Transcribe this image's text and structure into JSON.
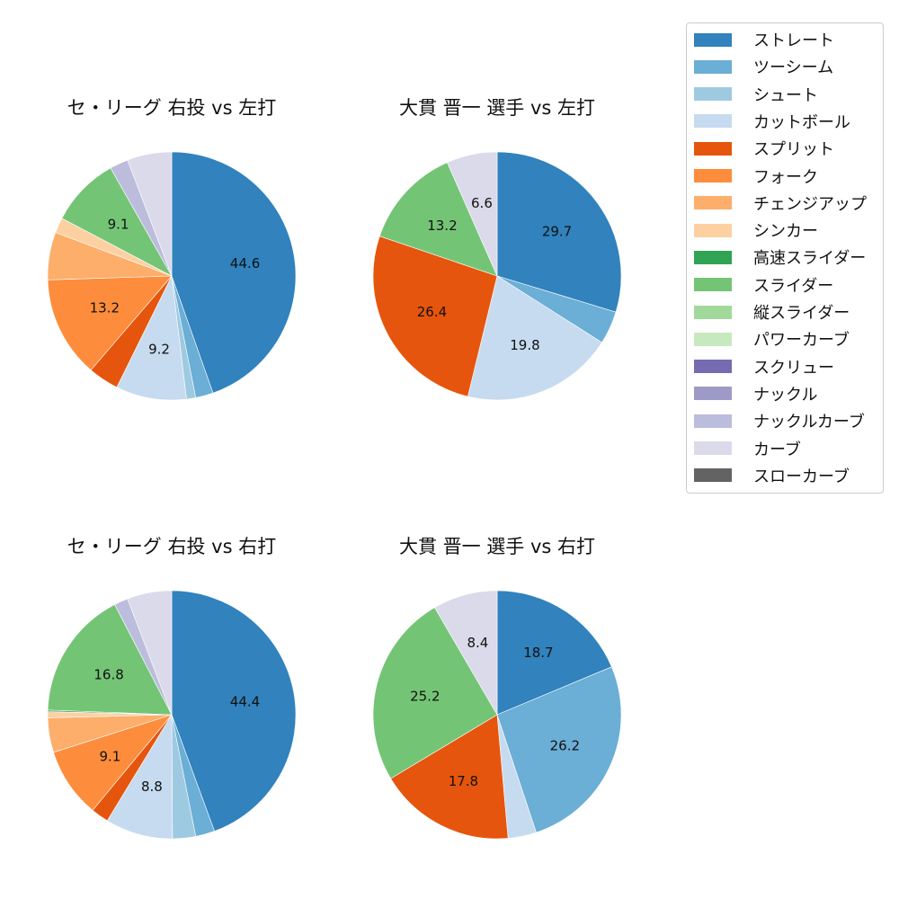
{
  "legend": {
    "items": [
      {
        "label": "ストレート",
        "color": "#3182bd"
      },
      {
        "label": "ツーシーム",
        "color": "#6baed6"
      },
      {
        "label": "シュート",
        "color": "#9ecae1"
      },
      {
        "label": "カットボール",
        "color": "#c6dbef"
      },
      {
        "label": "スプリット",
        "color": "#e6550d"
      },
      {
        "label": "フォーク",
        "color": "#fd8d3c"
      },
      {
        "label": "チェンジアップ",
        "color": "#fdae6b"
      },
      {
        "label": "シンカー",
        "color": "#fdd0a2"
      },
      {
        "label": "高速スライダー",
        "color": "#31a354"
      },
      {
        "label": "スライダー",
        "color": "#74c476"
      },
      {
        "label": "縦スライダー",
        "color": "#a1d99b"
      },
      {
        "label": "パワーカーブ",
        "color": "#c7e9c0"
      },
      {
        "label": "スクリュー",
        "color": "#756bb1"
      },
      {
        "label": "ナックル",
        "color": "#9e9ac8"
      },
      {
        "label": "ナックルカーブ",
        "color": "#bcbddc"
      },
      {
        "label": "カーブ",
        "color": "#dadaeb"
      },
      {
        "label": "スローカーブ",
        "color": "#636363"
      }
    ]
  },
  "chart_data": [
    {
      "type": "pie",
      "title": "セ・リーグ 右投 vs 左打",
      "categories": [
        "ストレート",
        "ツーシーム",
        "シュート",
        "カットボール",
        "スプリット",
        "フォーク",
        "チェンジアップ",
        "シンカー",
        "スライダー",
        "ナックルカーブ",
        "カーブ"
      ],
      "values": [
        44.6,
        2.3,
        1.2,
        9.2,
        4.0,
        13.2,
        6.2,
        2.0,
        9.1,
        2.4,
        5.8
      ],
      "labels_shown": [
        "44.6",
        "",
        "",
        "9.2",
        "",
        "13.2",
        "",
        "",
        "9.1",
        "",
        ""
      ],
      "start_angle": 90,
      "direction": "clockwise"
    },
    {
      "type": "pie",
      "title": "大貫 晋一 選手 vs 左打",
      "categories": [
        "ストレート",
        "ツーシーム",
        "カットボール",
        "スプリット",
        "スライダー",
        "カーブ"
      ],
      "values": [
        29.7,
        4.3,
        19.8,
        26.4,
        13.2,
        6.6
      ],
      "labels_shown": [
        "29.7",
        "",
        "19.8",
        "26.4",
        "13.2",
        "6.6"
      ],
      "start_angle": 90,
      "direction": "clockwise"
    },
    {
      "type": "pie",
      "title": "セ・リーグ 右投 vs 右打",
      "categories": [
        "ストレート",
        "ツーシーム",
        "シュート",
        "カットボール",
        "スプリット",
        "フォーク",
        "チェンジアップ",
        "シンカー",
        "高速スライダー",
        "スライダー",
        "ナックルカーブ",
        "カーブ"
      ],
      "values": [
        44.4,
        2.5,
        3.0,
        8.8,
        2.3,
        9.1,
        4.5,
        0.8,
        0.2,
        16.8,
        1.8,
        5.8
      ],
      "labels_shown": [
        "44.4",
        "",
        "",
        "8.8",
        "",
        "9.1",
        "",
        "",
        "",
        "16.8",
        "",
        ""
      ],
      "start_angle": 90,
      "direction": "clockwise"
    },
    {
      "type": "pie",
      "title": "大貫 晋一 選手 vs 右打",
      "categories": [
        "ストレート",
        "ツーシーム",
        "カットボール",
        "スプリット",
        "スライダー",
        "カーブ"
      ],
      "values": [
        18.7,
        26.2,
        3.7,
        17.8,
        25.2,
        8.4
      ],
      "labels_shown": [
        "18.7",
        "26.2",
        "",
        "17.8",
        "25.2",
        "8.4"
      ],
      "start_angle": 90,
      "direction": "clockwise"
    }
  ],
  "panels": [
    {
      "title": "セ・リーグ 右投 vs 左打"
    },
    {
      "title": "大貫 晋一 選手 vs 左打"
    },
    {
      "title": "セ・リーグ 右投 vs 右打"
    },
    {
      "title": "大貫 晋一 選手 vs 右打"
    }
  ]
}
